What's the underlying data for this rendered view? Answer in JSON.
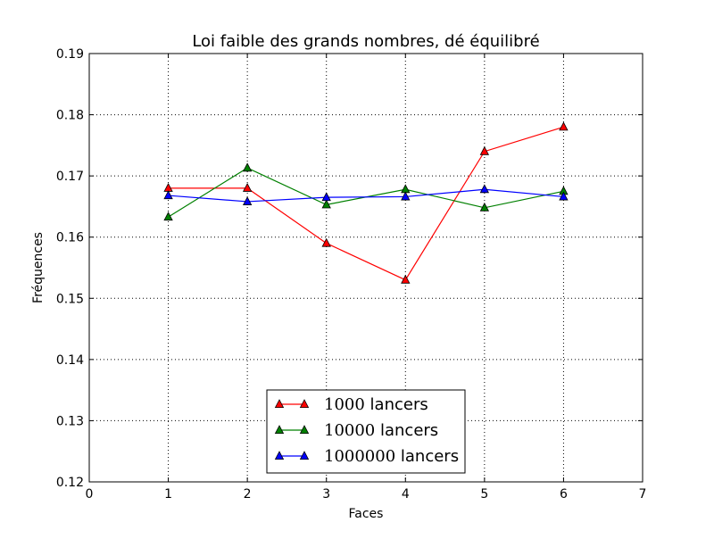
{
  "chart_data": {
    "type": "line",
    "title": "Loi faible des grands nombres, dé équilibré",
    "xlabel": "Faces",
    "ylabel": "Fréquences",
    "xlim": [
      0,
      7
    ],
    "ylim": [
      0.12,
      0.19
    ],
    "xticks": [
      0,
      1,
      2,
      3,
      4,
      5,
      6,
      7
    ],
    "yticks": [
      0.12,
      0.13,
      0.14,
      0.15,
      0.16,
      0.17,
      0.18,
      0.19
    ],
    "xtick_labels": [
      "0",
      "1",
      "2",
      "3",
      "4",
      "5",
      "6",
      "7"
    ],
    "ytick_labels": [
      "0.12",
      "0.13",
      "0.14",
      "0.15",
      "0.16",
      "0.17",
      "0.18",
      "0.19"
    ],
    "grid": true,
    "legend_position": "bottom-center",
    "x": [
      1,
      2,
      3,
      4,
      5,
      6
    ],
    "series": [
      {
        "name_number": "1000",
        "name_suffix": "lancers",
        "color": "#ff0000",
        "marker": "triangle-up",
        "values": [
          0.168,
          0.168,
          0.159,
          0.153,
          0.174,
          0.178
        ]
      },
      {
        "name_number": "10000",
        "name_suffix": "lancers",
        "color": "#008000",
        "marker": "triangle-up",
        "values": [
          0.1633,
          0.1713,
          0.1653,
          0.1678,
          0.1648,
          0.1675
        ]
      },
      {
        "name_number": "1000000",
        "name_suffix": "lancers",
        "color": "#0000ff",
        "marker": "triangle-up",
        "values": [
          0.1668,
          0.1658,
          0.1665,
          0.1666,
          0.1678,
          0.1666
        ]
      }
    ]
  }
}
